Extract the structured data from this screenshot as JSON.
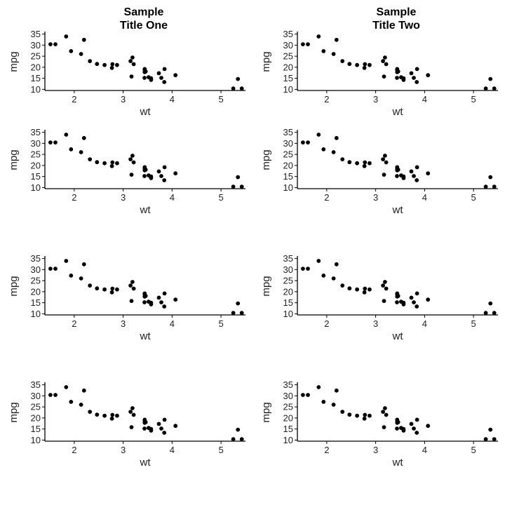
{
  "chart_data": {
    "type": "scatter",
    "layout": "grid of 4 rows x 2 columns of identical scatter panels",
    "titles": [
      [
        "Sample",
        "Title One"
      ],
      [
        "Sample",
        "Title Two"
      ]
    ],
    "xlabel": "wt",
    "ylabel": "mpg",
    "xlim": [
      1.4,
      5.5
    ],
    "ylim": [
      9.5,
      35.5
    ],
    "xticks": [
      2,
      3,
      4,
      5
    ],
    "yticks": [
      10,
      15,
      20,
      25,
      30,
      35
    ],
    "grid": false,
    "point_color": "#000000",
    "points": [
      [
        2.62,
        21.0
      ],
      [
        2.875,
        21.0
      ],
      [
        2.32,
        22.8
      ],
      [
        3.215,
        21.4
      ],
      [
        3.44,
        18.7
      ],
      [
        3.46,
        18.1
      ],
      [
        3.57,
        14.3
      ],
      [
        3.19,
        24.4
      ],
      [
        3.15,
        22.8
      ],
      [
        3.44,
        19.2
      ],
      [
        3.44,
        17.8
      ],
      [
        4.07,
        16.4
      ],
      [
        3.73,
        17.3
      ],
      [
        3.78,
        15.2
      ],
      [
        5.25,
        10.4
      ],
      [
        5.424,
        10.4
      ],
      [
        5.345,
        14.7
      ],
      [
        2.2,
        32.4
      ],
      [
        1.615,
        30.4
      ],
      [
        1.835,
        33.9
      ],
      [
        2.465,
        21.5
      ],
      [
        3.52,
        15.5
      ],
      [
        3.435,
        15.2
      ],
      [
        3.84,
        13.3
      ],
      [
        3.845,
        19.2
      ],
      [
        1.935,
        27.3
      ],
      [
        2.14,
        26.0
      ],
      [
        1.513,
        30.4
      ],
      [
        3.17,
        15.8
      ],
      [
        2.77,
        19.7
      ],
      [
        3.57,
        15.0
      ],
      [
        2.78,
        21.4
      ]
    ]
  }
}
